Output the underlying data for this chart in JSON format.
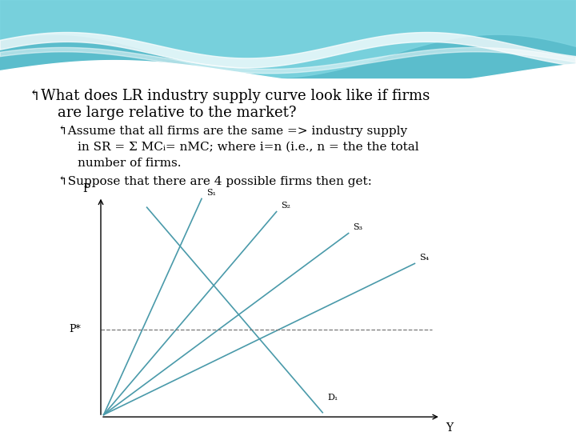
{
  "title_line1": "↰What does LR industry supply curve look like if firms",
  "title_line2": "are large relative to the market?",
  "bullet1_line1": "↰Assume that all firms are the same => industry supply",
  "bullet1_line2": "in SR = Σ MCᵢ= nMC; where i=n (i.e., n = the the total",
  "bullet1_line3": "number of firms.",
  "bullet2": "↰Suppose that there are 4 possible firms then get:",
  "axis_xlabel": "Y",
  "axis_ylabel": "P",
  "pstar_label": "P*",
  "supply_labels": [
    "S₁",
    "S₂",
    "S₃",
    "S₄"
  ],
  "demand_label": "D₁",
  "text_color": "#000000",
  "line_color": "#4a9aaa",
  "dashed_color": "#777777",
  "wave_color1": "#5bbdcc",
  "wave_color2": "#7dd4e0",
  "bg_content_color": "#ffffff",
  "bg_slide_color": "#cceeff"
}
